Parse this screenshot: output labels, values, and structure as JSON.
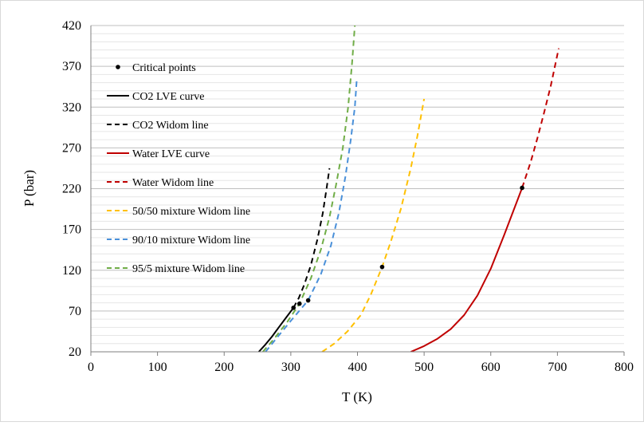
{
  "chart_data": {
    "type": "line",
    "xlabel": "T (K)",
    "ylabel": "P (bar)",
    "xlim": [
      0,
      800
    ],
    "ylim": [
      20,
      420
    ],
    "x_ticks": [
      "0",
      "100",
      "200",
      "300",
      "400",
      "500",
      "600",
      "700",
      "800"
    ],
    "y_ticks": [
      "20",
      "70",
      "120",
      "170",
      "220",
      "270",
      "320",
      "370",
      "420"
    ],
    "grid": "horizontal",
    "legend_position": "top-left-inside",
    "series": [
      {
        "name": "Critical points",
        "style": "marker",
        "color": "#000000",
        "x": [
          304,
          313,
          326,
          437,
          647
        ],
        "y": [
          74,
          79,
          83,
          124,
          221
        ]
      },
      {
        "name": "CO2 LVE curve",
        "style": "solid",
        "color": "#000000",
        "x": [
          252,
          262,
          272,
          282,
          292,
          304
        ],
        "y": [
          20,
          29,
          39,
          50,
          61,
          74
        ]
      },
      {
        "name": "CO2 Widom line",
        "style": "dashed",
        "color": "#000000",
        "x": [
          304,
          312,
          320,
          330,
          340,
          348,
          354,
          358
        ],
        "y": [
          74,
          86,
          102,
          126,
          158,
          190,
          222,
          245
        ]
      },
      {
        "name": "Water LVE curve",
        "style": "solid",
        "color": "#c00000",
        "x": [
          480,
          500,
          520,
          540,
          560,
          580,
          600,
          620,
          647
        ],
        "y": [
          20,
          27,
          36,
          48,
          65,
          89,
          122,
          163,
          221
        ]
      },
      {
        "name": "Water Widom line",
        "style": "dashed",
        "color": "#c00000",
        "x": [
          647,
          660,
          670,
          680,
          690,
          702
        ],
        "y": [
          221,
          253,
          282,
          313,
          346,
          392
        ]
      },
      {
        "name": "50/50 mixture Widom line",
        "style": "dashed",
        "color": "#ffc000",
        "x": [
          347,
          365,
          385,
          405,
          420,
          437,
          450,
          465,
          480,
          490,
          500
        ],
        "y": [
          20,
          30,
          45,
          65,
          90,
          124,
          155,
          195,
          245,
          285,
          330
        ]
      },
      {
        "name": "90/10 mixture Widom line",
        "style": "dashed",
        "color": "#4a90d9",
        "x": [
          262,
          280,
          300,
          326,
          345,
          360,
          372,
          382,
          390,
          396,
          399
        ],
        "y": [
          20,
          38,
          58,
          83,
          115,
          150,
          190,
          235,
          280,
          320,
          355
        ]
      },
      {
        "name": "95/5 mixture Widom line",
        "style": "dashed",
        "color": "#70ad47",
        "x": [
          258,
          275,
          295,
          313,
          330,
          345,
          358,
          368,
          378,
          386,
          392,
          396
        ],
        "y": [
          20,
          36,
          57,
          79,
          110,
          145,
          185,
          225,
          270,
          320,
          375,
          420
        ]
      }
    ]
  }
}
